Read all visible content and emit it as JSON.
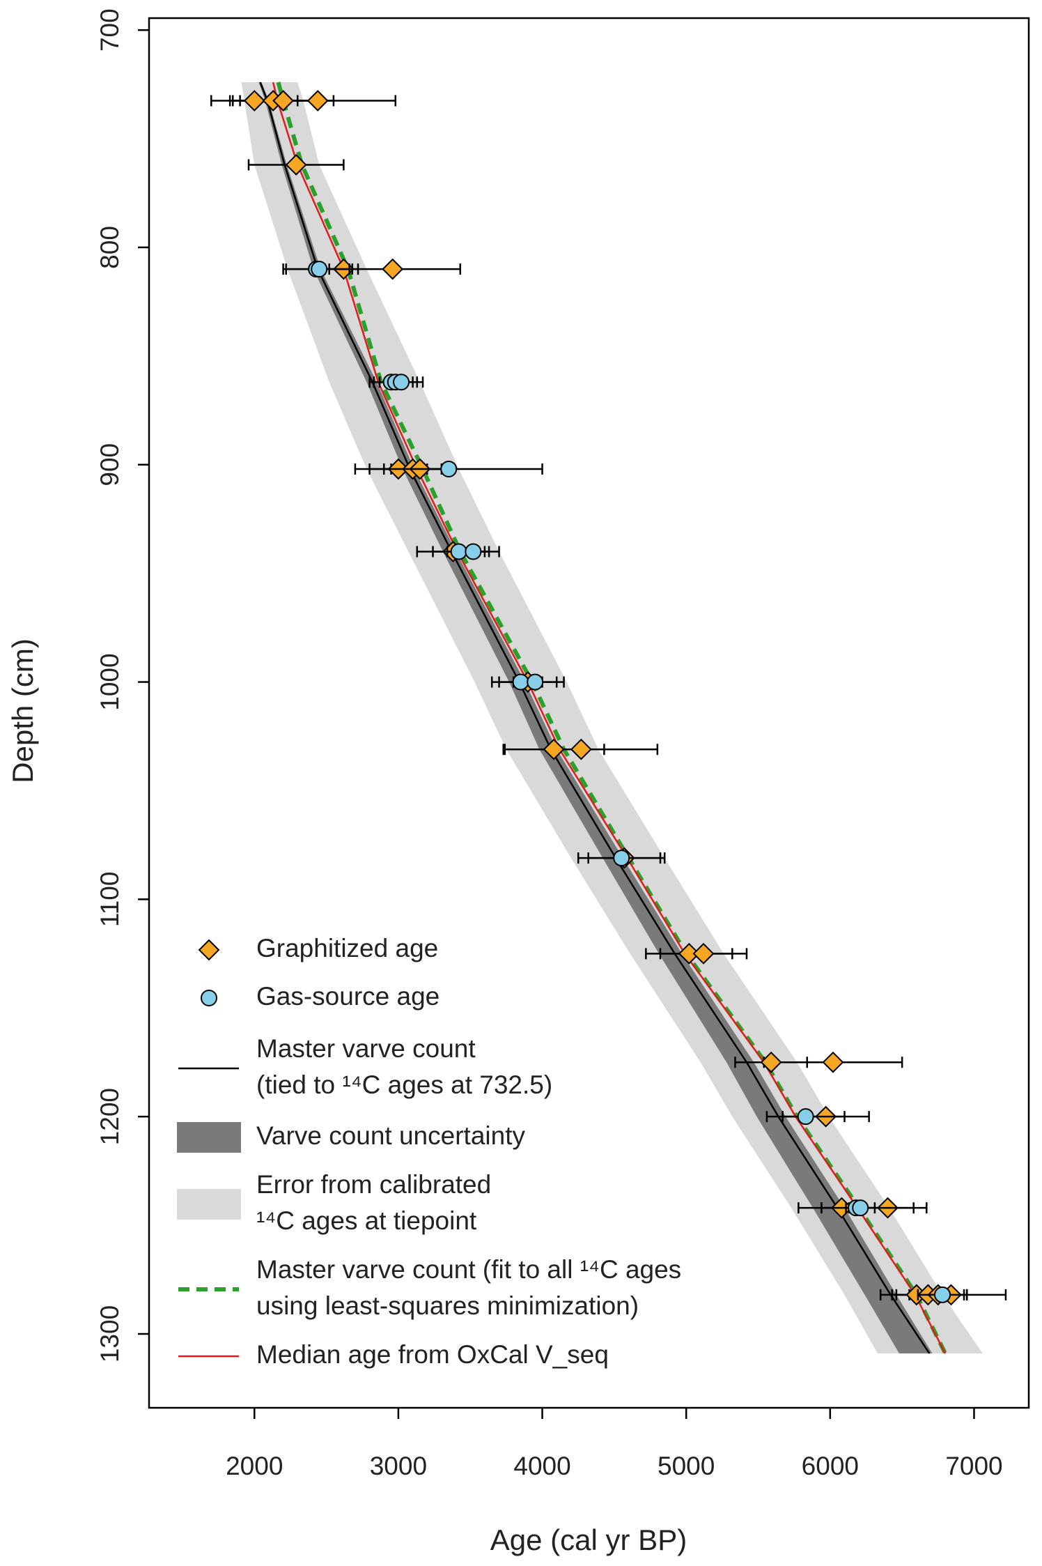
{
  "chart_data": {
    "type": "scatter",
    "xlabel": "Age (cal yr BP)",
    "ylabel": "Depth (cm)",
    "xlim": [
      1268,
      7380
    ],
    "ylim": [
      694.5,
      1334
    ],
    "y_inverted": true,
    "xticks": [
      2000,
      3000,
      4000,
      5000,
      6000,
      7000
    ],
    "yticks": [
      700,
      800,
      900,
      1000,
      1100,
      1200,
      1300
    ],
    "series": [
      {
        "name": "Graphitized age",
        "kind": "points",
        "marker": "diamond",
        "color": "#f5a623",
        "x": [
          2000,
          2130,
          2200,
          2440,
          2290,
          2620,
          2960,
          3000,
          3100,
          3150,
          3380,
          3900,
          4080,
          4270,
          4570,
          5020,
          5120,
          5590,
          6020,
          5970,
          6080,
          6400,
          6600,
          6680,
          6750,
          6840
        ],
        "y": [
          732.5,
          732.5,
          732.5,
          732.5,
          762,
          810,
          810,
          902,
          902,
          902,
          940,
          1000,
          1031,
          1031,
          1081,
          1125,
          1125,
          1175,
          1175,
          1200,
          1242,
          1242,
          1282,
          1282,
          1282,
          1282
        ],
        "xerr": [
          300,
          300,
          350,
          540,
          330,
          100,
          470,
          200,
          200,
          200,
          250,
          250,
          350,
          530,
          250,
          300,
          300,
          250,
          480,
          300,
          140,
          270,
          250,
          250,
          200,
          380
        ]
      },
      {
        "name": "Gas-source age",
        "kind": "points",
        "marker": "circle",
        "color": "#87cee8",
        "x": [
          2430,
          2450,
          2950,
          2980,
          3020,
          3350,
          3420,
          3520,
          3850,
          3950,
          4550,
          5830,
          6180,
          6210,
          6780
        ],
        "y": [
          810,
          810,
          862,
          862,
          862,
          902,
          940,
          940,
          1000,
          1000,
          1081,
          1200,
          1242,
          1242,
          1282
        ],
        "xerr": [
          230,
          230,
          150,
          150,
          150,
          650,
          180,
          180,
          150,
          150,
          300,
          270,
          400,
          100,
          170
        ]
      },
      {
        "name": [
          "Master varve count",
          "(tied to ¹⁴C ages at 732.5)"
        ],
        "kind": "line",
        "color": "#000000",
        "x": [
          2040,
          2090,
          2210,
          2440,
          2820,
          3080,
          3370,
          3840,
          4060,
          4510,
          4920,
          5420,
          5640,
          6050,
          6420,
          6690
        ],
        "y": [
          724,
          732.5,
          762,
          810,
          862,
          902,
          940,
          1000,
          1031,
          1081,
          1125,
          1175,
          1200,
          1242,
          1282,
          1309
        ]
      },
      {
        "name": "Varve count uncertainty",
        "kind": "band",
        "color": "#7a7a7a",
        "lower": [
          2030,
          2075,
          2190,
          2410,
          2780,
          3030,
          3310,
          3770,
          3980,
          4420,
          4810,
          5280,
          5490,
          5880,
          6240,
          6480
        ],
        "upper": [
          2050,
          2100,
          2225,
          2460,
          2850,
          3110,
          3400,
          3880,
          4100,
          4560,
          4970,
          5470,
          5690,
          6100,
          6460,
          6710
        ],
        "y": [
          724,
          732.5,
          762,
          810,
          862,
          902,
          940,
          1000,
          1031,
          1081,
          1125,
          1175,
          1200,
          1242,
          1282,
          1309
        ]
      },
      {
        "name": [
          "Error from calibrated",
          "¹⁴C ages at tiepoint"
        ],
        "kind": "band",
        "color": "#d9d9d9",
        "lower": [
          1910,
          1930,
          2000,
          2230,
          2520,
          2780,
          3070,
          3530,
          3750,
          4200,
          4610,
          5100,
          5320,
          5730,
          6100,
          6330
        ],
        "upper": [
          2300,
          2340,
          2450,
          2780,
          3150,
          3420,
          3700,
          4170,
          4390,
          4850,
          5260,
          5770,
          5990,
          6410,
          6780,
          7060
        ],
        "y": [
          724,
          732.5,
          762,
          810,
          862,
          902,
          940,
          1000,
          1031,
          1081,
          1125,
          1175,
          1200,
          1242,
          1282,
          1309
        ]
      },
      {
        "name": [
          "Master varve count (fit to all ¹⁴C ages",
          "using least-squares minimization)"
        ],
        "kind": "line",
        "dashed": true,
        "color": "#2ca02c",
        "x": [
          2166,
          2200,
          2330,
          2650,
          2880,
          3170,
          3430,
          3930,
          4150,
          4600,
          5000,
          5550,
          5770,
          6200,
          6600,
          6800
        ],
        "y": [
          724,
          732.5,
          762,
          810,
          862,
          902,
          940,
          1000,
          1031,
          1081,
          1125,
          1175,
          1200,
          1242,
          1282,
          1309
        ]
      },
      {
        "name": "Median age from OxCal V_seq",
        "kind": "line",
        "color": "#e41a1c",
        "x": [
          2130,
          2160,
          2300,
          2620,
          2860,
          3130,
          3410,
          3900,
          4120,
          4590,
          4990,
          5540,
          5760,
          6190,
          6590,
          6800
        ],
        "y": [
          724,
          732.5,
          762,
          810,
          862,
          902,
          940,
          1000,
          1031,
          1081,
          1125,
          1175,
          1200,
          1242,
          1282,
          1309
        ]
      }
    ]
  }
}
